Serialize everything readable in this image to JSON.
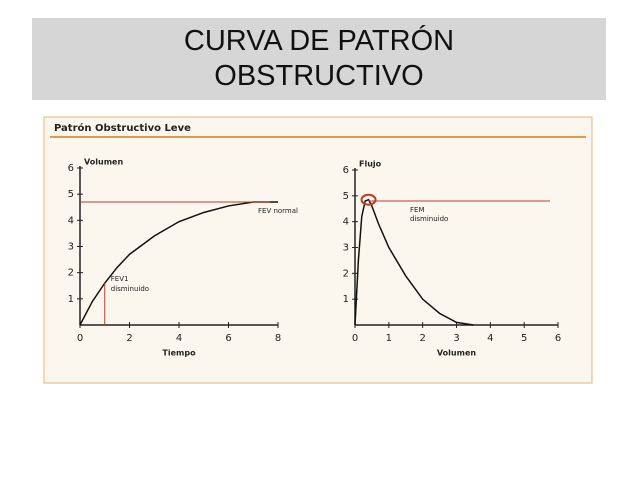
{
  "header": {
    "title_lines": [
      "CURVA DE PATRÓN",
      "OBSTRUCTIVO"
    ]
  },
  "panel": {
    "title": "Patrón Obstructivo Leve"
  },
  "chart_data": [
    {
      "type": "line",
      "y_label": "Volumen",
      "x_label": "Tiempo",
      "x": [
        0,
        0.5,
        1,
        1.5,
        2,
        3,
        4,
        5,
        6,
        7,
        8
      ],
      "series": [
        {
          "color": "#111111",
          "values": [
            0,
            0.9,
            1.6,
            2.2,
            2.7,
            3.4,
            3.95,
            4.3,
            4.55,
            4.7,
            4.7
          ]
        }
      ],
      "xlim": [
        0,
        8
      ],
      "ylim": [
        0,
        6
      ],
      "xticks": [
        0,
        2,
        4,
        6,
        8
      ],
      "yticks": [
        1,
        2,
        3,
        4,
        5,
        6
      ],
      "hline": {
        "value": 4.7,
        "color": "#c0392b",
        "label_lines": [
          "FEV normal"
        ]
      },
      "vline": {
        "value": 1,
        "color": "#c0392b",
        "label_lines": [
          "FEV1",
          "disminuido"
        ]
      }
    },
    {
      "type": "line",
      "y_label": "Flujo",
      "x_label": "Volumen",
      "x": [
        0,
        0.1,
        0.2,
        0.3,
        0.4,
        0.5,
        0.7,
        1,
        1.5,
        2,
        2.5,
        3,
        3.5
      ],
      "series": [
        {
          "color": "#111111",
          "values": [
            0,
            2.5,
            4.2,
            4.8,
            4.85,
            4.6,
            3.9,
            3.0,
            1.9,
            1.0,
            0.45,
            0.1,
            0
          ]
        }
      ],
      "xlim": [
        0,
        6
      ],
      "ylim": [
        0,
        6
      ],
      "xticks": [
        0,
        1,
        2,
        3,
        4,
        5,
        6
      ],
      "yticks": [
        1,
        2,
        3,
        4,
        5,
        6
      ],
      "hline": {
        "value": 4.8,
        "color": "#c0392b",
        "label_lines": [
          "FEM",
          "disminuido"
        ]
      }
    }
  ]
}
